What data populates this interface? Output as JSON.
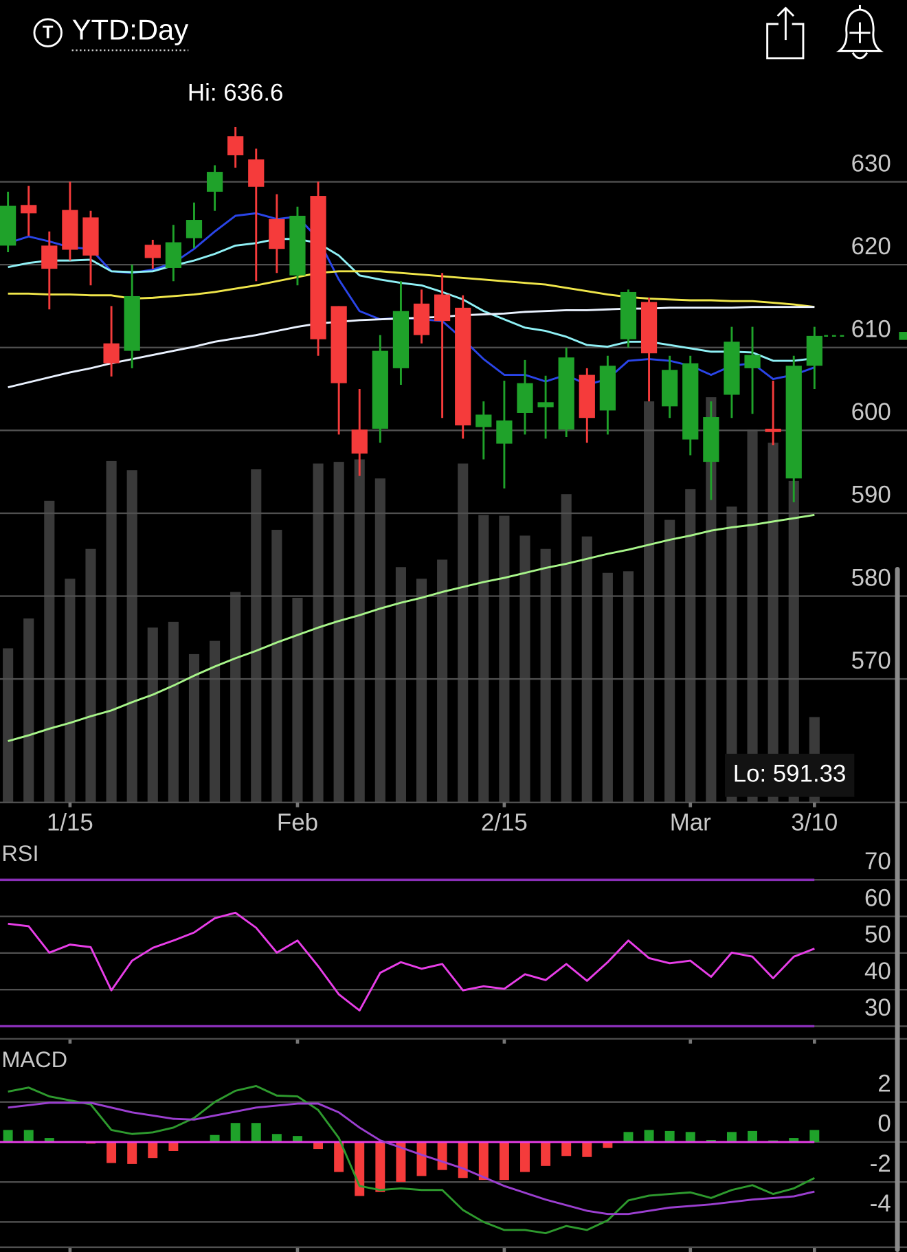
{
  "header": {
    "icon": "T",
    "title": "YTD:Day"
  },
  "chart_data": [
    {
      "type": "candlestick",
      "categories": [
        null,
        null,
        null,
        "1/15",
        null,
        null,
        null,
        null,
        null,
        null,
        null,
        null,
        null,
        null,
        "Feb",
        null,
        null,
        null,
        null,
        null,
        null,
        null,
        null,
        null,
        "2/15",
        null,
        null,
        null,
        null,
        null,
        null,
        null,
        null,
        "Mar",
        null,
        null,
        null,
        null,
        null,
        "3/10"
      ],
      "open": [
        622.3,
        627.2,
        622.3,
        626.6,
        625.7,
        610.5,
        609.6,
        622.4,
        619.6,
        623.2,
        628.8,
        635.5,
        632.7,
        625.5,
        618.7,
        628.3,
        615,
        600.1,
        600.2,
        607.5,
        615.3,
        616.4,
        614.8,
        600.4,
        598.4,
        602.1,
        602.8,
        600.1,
        606.7,
        602.4,
        611,
        615.5,
        602.9,
        598.9,
        596.2,
        604.3,
        607.5,
        600.2,
        594.2,
        607.8
      ],
      "high": [
        628.8,
        629.5,
        624,
        630,
        626.5,
        615,
        620,
        623,
        624.8,
        627.5,
        632,
        636.6,
        634,
        628.5,
        627,
        630,
        615,
        605,
        611.5,
        618,
        617,
        619,
        616.3,
        603.5,
        606,
        608.5,
        606.6,
        610,
        607.5,
        609,
        617,
        616,
        609,
        609,
        603.5,
        612.5,
        612.5,
        606,
        609,
        612.5
      ],
      "low": [
        621.5,
        623.5,
        614.6,
        620.5,
        617.5,
        606.5,
        607.5,
        619.5,
        618,
        622,
        626.5,
        631.7,
        618,
        619,
        617.5,
        609,
        599.5,
        594.5,
        598.5,
        605.5,
        610.5,
        601.5,
        599,
        596.5,
        593,
        599.5,
        599,
        599.2,
        598.5,
        599.5,
        610,
        603.5,
        601.5,
        597,
        591.6,
        601.5,
        602,
        598.2,
        591.33,
        605
      ],
      "close": [
        627.1,
        626.2,
        619.5,
        621.8,
        621.1,
        608.1,
        616.2,
        620.8,
        622.7,
        625.4,
        631.2,
        633.2,
        629.4,
        621.9,
        625.9,
        611,
        605.7,
        597.2,
        609.6,
        614.4,
        611.5,
        613.2,
        600.6,
        601.9,
        601.2,
        605.7,
        603.4,
        608.8,
        601.5,
        607.8,
        616.7,
        609.3,
        607.3,
        608.1,
        601.6,
        610.7,
        609.1,
        599.8,
        607.8,
        611.4
      ],
      "up_color": "#1fa22a",
      "down_color": "#f53b3b",
      "volume": [
        18.7,
        22.3,
        36.5,
        27.1,
        30.7,
        41.3,
        40.2,
        21.2,
        21.9,
        18.0,
        19.6,
        25.5,
        40.3,
        33.0,
        24.8,
        41.0,
        41.2,
        41.5,
        39.2,
        28.5,
        27.1,
        29.4,
        41.0,
        34.8,
        34.7,
        32.3,
        30.7,
        37.3,
        32.2,
        27.8,
        28.0,
        48.5,
        34.2,
        37.9,
        49.0,
        35.8,
        45.1,
        43.5,
        38.9,
        10.4
      ],
      "volume_color": "#3a3a3a",
      "volume_ylim": [
        0,
        90
      ],
      "series": [
        {
          "color": "#2a45e8",
          "values": [
            622.6,
            623.4,
            622.8,
            622.1,
            621.9,
            619.2,
            619.0,
            619.4,
            620.2,
            621.9,
            624.0,
            625.9,
            626.2,
            625.5,
            625.8,
            623.1,
            618.2,
            614.4,
            613.4,
            613.6,
            613.4,
            613.2,
            611.0,
            608.6,
            606.7,
            606.7,
            605.9,
            606.7,
            605.5,
            606.2,
            608.4,
            608.6,
            608.4,
            607.8,
            606.7,
            607.8,
            608.1,
            606.2,
            606.7,
            607.6
          ]
        },
        {
          "color": "#8ff0f5",
          "values": [
            619.7,
            620.2,
            620.5,
            620.5,
            620.6,
            619.2,
            619.1,
            619.2,
            619.9,
            620.5,
            621.3,
            622.3,
            622.6,
            623.1,
            623.1,
            622.6,
            621.1,
            618.7,
            618.2,
            617.8,
            617.5,
            616.7,
            615.8,
            614.4,
            613.4,
            612.4,
            612.0,
            611.3,
            610.3,
            610.1,
            610.7,
            610.7,
            610.3,
            609.9,
            609.5,
            609.5,
            609.4,
            608.4,
            608.4,
            608.7
          ]
        },
        {
          "color": "#f0e64a",
          "values": [
            616.5,
            616.5,
            616.4,
            616.4,
            616.3,
            616.3,
            615.9,
            616.0,
            616.2,
            616.4,
            616.7,
            617.1,
            617.5,
            618.0,
            618.5,
            619.0,
            619.2,
            619.2,
            619.2,
            619.0,
            618.8,
            618.6,
            618.4,
            618.2,
            618.0,
            617.8,
            617.6,
            617.2,
            616.8,
            616.4,
            616.1,
            615.9,
            615.8,
            615.7,
            615.7,
            615.6,
            615.6,
            615.4,
            615.2,
            614.9
          ]
        },
        {
          "color": "#eaf2ff",
          "values": [
            605.2,
            605.8,
            606.4,
            607.0,
            607.5,
            608.1,
            608.6,
            609.1,
            609.6,
            610.1,
            610.7,
            611.1,
            611.5,
            612.0,
            612.5,
            612.9,
            613.1,
            613.3,
            613.4,
            613.5,
            613.6,
            613.7,
            613.9,
            614.0,
            614.1,
            614.3,
            614.4,
            614.5,
            614.5,
            614.6,
            614.7,
            614.7,
            614.8,
            614.8,
            614.8,
            614.8,
            614.9,
            614.9,
            614.9,
            614.9
          ]
        },
        {
          "color": "#a8f58a",
          "values": [
            562.5,
            563.2,
            564.0,
            564.7,
            565.5,
            566.2,
            567.2,
            568.1,
            569.2,
            570.4,
            571.5,
            572.5,
            573.4,
            574.4,
            575.3,
            576.2,
            577.0,
            577.7,
            578.5,
            579.2,
            579.8,
            580.5,
            581.1,
            581.7,
            582.2,
            582.8,
            583.4,
            583.9,
            584.5,
            585.1,
            585.6,
            586.2,
            586.8,
            587.3,
            587.9,
            588.3,
            588.6,
            589.0,
            589.4,
            589.8
          ]
        }
      ],
      "annotations": [
        "Hi: 636.6",
        "Lo: 591.33"
      ],
      "ylim": [
        555,
        645
      ],
      "yticks": [
        570,
        580,
        590,
        600,
        610,
        620,
        630
      ],
      "grid": true
    },
    {
      "type": "line",
      "title": "RSI",
      "series": [
        {
          "color": "#e83ee8",
          "values": [
            58.0,
            57.3,
            50.1,
            52.3,
            51.6,
            39.8,
            47.9,
            51.4,
            53.4,
            55.6,
            59.5,
            61.0,
            56.9,
            50.1,
            53.4,
            46.4,
            38.7,
            34.3,
            44.6,
            47.5,
            45.7,
            47.0,
            39.8,
            40.9,
            40.2,
            44.2,
            42.6,
            47.0,
            42.4,
            47.5,
            53.4,
            48.6,
            47.2,
            47.9,
            43.5,
            50.1,
            49.0,
            43.1,
            49.0,
            51.2
          ]
        }
      ],
      "bands": [
        30,
        70
      ],
      "band_color": "#8a2fb8",
      "ylim": [
        27,
        80
      ],
      "yticks": [
        30,
        40,
        50,
        60,
        70
      ],
      "grid": true
    },
    {
      "type": "combo",
      "title": "MACD",
      "histogram": [
        0.6,
        0.6,
        0.2,
        0.05,
        -0.08,
        -1.05,
        -1.1,
        -0.8,
        -0.45,
        0,
        0.35,
        0.95,
        0.95,
        0.4,
        0.3,
        -0.35,
        -1.5,
        -2.7,
        -2.5,
        -2.0,
        -1.7,
        -1.4,
        -1.8,
        -1.9,
        -1.9,
        -1.5,
        -1.2,
        -0.7,
        -0.75,
        -0.3,
        0.5,
        0.6,
        0.55,
        0.5,
        0.1,
        0.5,
        0.55,
        0.08,
        0.2,
        0.6
      ],
      "up_color": "#1fa22a",
      "down_color": "#f53b3b",
      "series": [
        {
          "color": "#2e9a2e",
          "values": [
            2.52,
            2.72,
            2.28,
            2.08,
            1.88,
            0.6,
            0.4,
            0.48,
            0.72,
            1.2,
            2.0,
            2.56,
            2.8,
            2.32,
            2.28,
            1.6,
            0.2,
            -2.2,
            -2.4,
            -2.32,
            -2.4,
            -2.4,
            -3.4,
            -4.0,
            -4.4,
            -4.4,
            -4.56,
            -4.2,
            -4.4,
            -3.92,
            -2.92,
            -2.68,
            -2.6,
            -2.52,
            -2.8,
            -2.4,
            -2.16,
            -2.6,
            -2.32,
            -1.8
          ]
        },
        {
          "color": "#9b3fd0",
          "values": [
            1.72,
            1.84,
            1.96,
            1.96,
            1.96,
            1.72,
            1.48,
            1.32,
            1.16,
            1.12,
            1.32,
            1.52,
            1.72,
            1.82,
            1.92,
            1.92,
            1.48,
            0.72,
            0.08,
            -0.28,
            -0.64,
            -0.98,
            -1.32,
            -1.76,
            -2.2,
            -2.54,
            -2.88,
            -3.16,
            -3.44,
            -3.6,
            -3.6,
            -3.44,
            -3.28,
            -3.2,
            -3.12,
            -3.0,
            -2.88,
            -2.8,
            -2.72,
            -2.48
          ]
        }
      ],
      "zero_color": "#e83ee8",
      "ylim": [
        -5.5,
        4.6
      ],
      "yticks": [
        -4,
        -2,
        0,
        2
      ],
      "grid": true
    }
  ]
}
